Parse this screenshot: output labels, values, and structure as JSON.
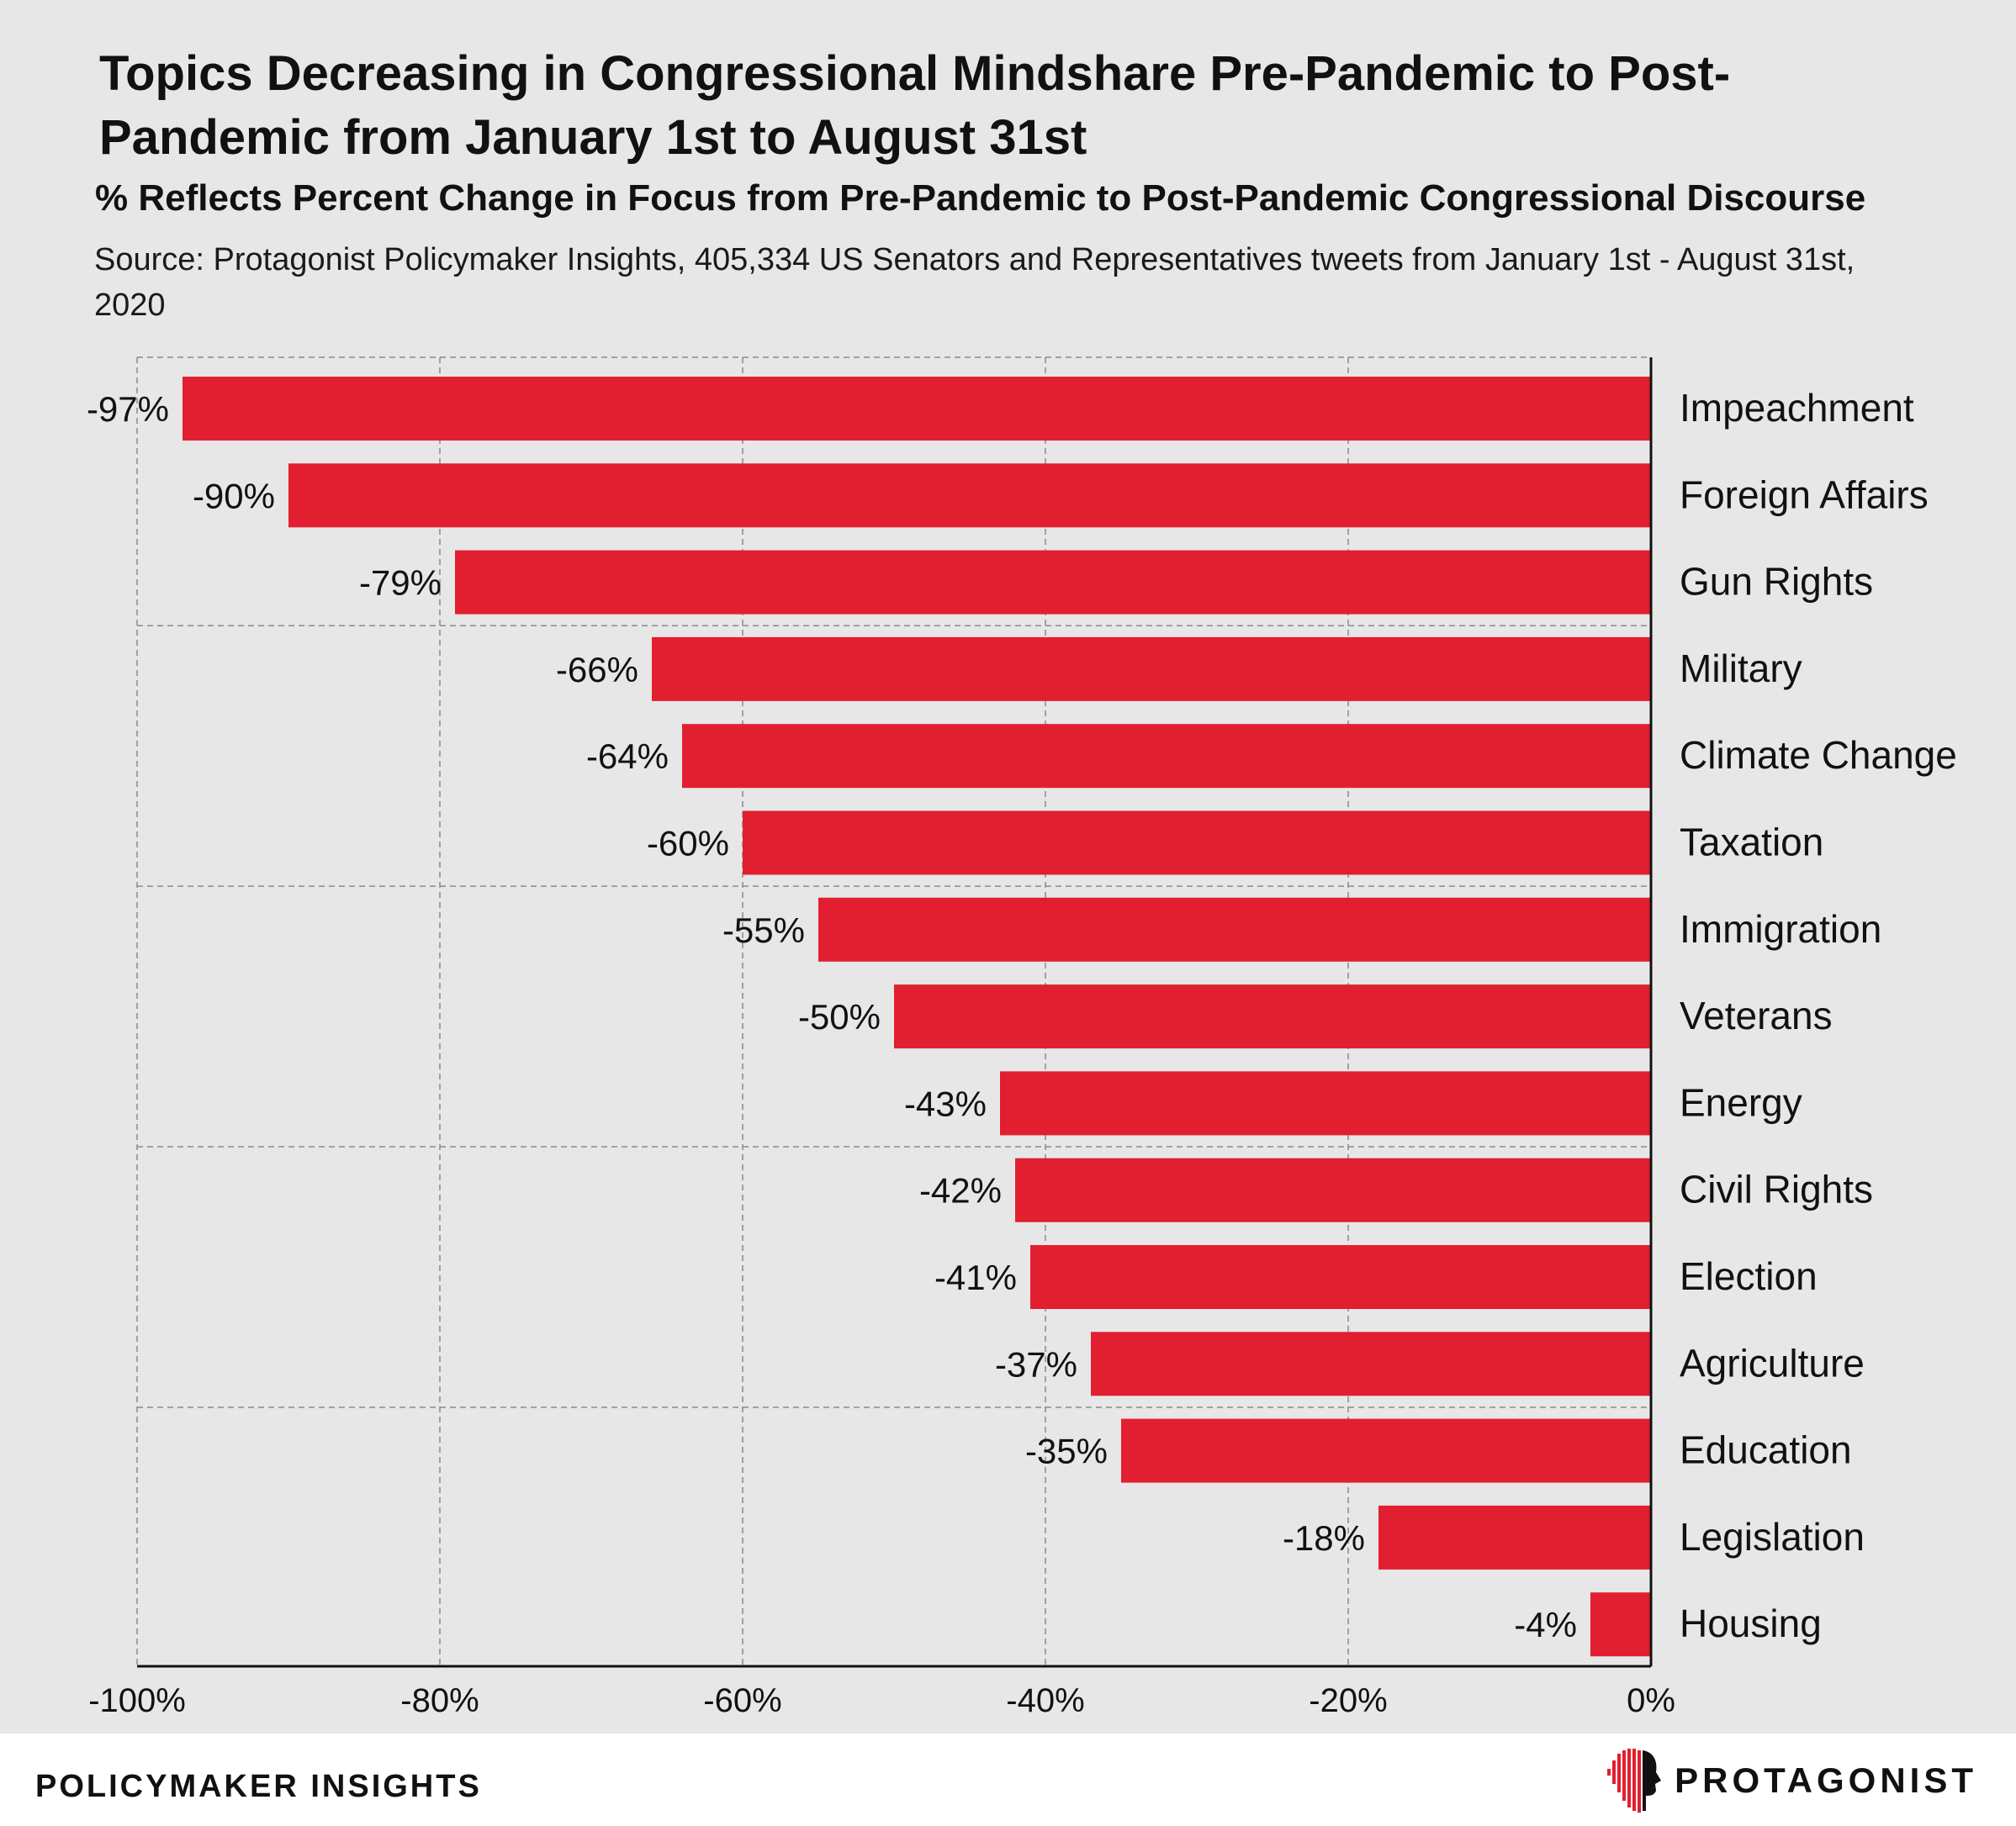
{
  "title": "Topics Decreasing in Congressional Mindshare Pre-Pandemic to Post-Pandemic from January 1st to August 31st",
  "subtitle": "% Reflects Percent Change in Focus from Pre-Pandemic to Post-Pandemic Congressional Discourse",
  "source": "Source: Protagonist Policymaker Insights, 405,334 US Senators and Representatives tweets from January 1st - August 31st, 2020",
  "footer": {
    "left_label": "POLICYMAKER INSIGHTS",
    "brand_name": "PROTAGONIST",
    "brand_icon": "head-profile-icon"
  },
  "colors": {
    "background": "#e6e7e6",
    "bar": "#e11f30",
    "grid": "#8a8a8a",
    "axis": "#111111",
    "footer_bg": "#ffffff"
  },
  "chart_data": {
    "type": "bar",
    "orientation": "horizontal",
    "categories": [
      "Impeachment",
      "Foreign Affairs",
      "Gun Rights",
      "Military",
      "Climate Change",
      "Taxation",
      "Immigration",
      "Veterans",
      "Energy",
      "Civil Rights",
      "Election",
      "Agriculture",
      "Education",
      "Legislation",
      "Housing"
    ],
    "values": [
      -97,
      -90,
      -79,
      -66,
      -64,
      -60,
      -55,
      -50,
      -43,
      -42,
      -41,
      -37,
      -35,
      -18,
      -4
    ],
    "value_labels": [
      "-97%",
      "-90%",
      "-79%",
      "-66%",
      "-64%",
      "-60%",
      "-55%",
      "-50%",
      "-43%",
      "-42%",
      "-41%",
      "-37%",
      "-35%",
      "-18%",
      "-4%"
    ],
    "xlim": [
      -100,
      0
    ],
    "xticks": [
      -100,
      -80,
      -60,
      -40,
      -20,
      0
    ],
    "xtick_labels": [
      "-100%",
      "-80%",
      "-60%",
      "-40%",
      "-20%",
      "0%"
    ],
    "grid": "dashed",
    "category_label_side": "right"
  }
}
